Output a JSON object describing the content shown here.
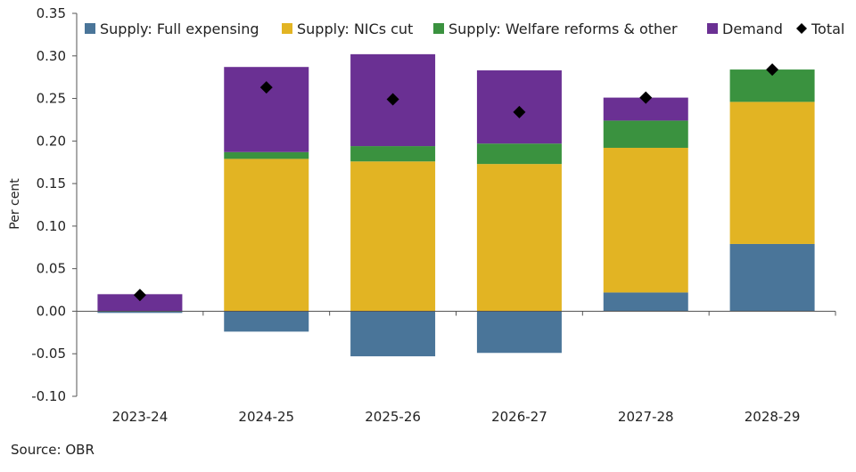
{
  "chart_data": {
    "type": "bar",
    "stacked": true,
    "categories": [
      "2023-24",
      "2024-25",
      "2025-26",
      "2026-27",
      "2027-28",
      "2028-29"
    ],
    "series": [
      {
        "name": "Supply: Full expensing",
        "color": "#4a7599",
        "values": [
          -0.002,
          -0.024,
          -0.053,
          -0.049,
          0.022,
          0.079
        ]
      },
      {
        "name": "Supply: NICs cut",
        "color": "#e2b423",
        "values": [
          0.0,
          0.179,
          0.176,
          0.173,
          0.17,
          0.167
        ]
      },
      {
        "name": "Supply: Welfare reforms & other",
        "color": "#3a923f",
        "values": [
          0.0,
          0.008,
          0.018,
          0.024,
          0.032,
          0.038
        ]
      },
      {
        "name": "Demand",
        "color": "#6a3093",
        "values": [
          0.02,
          0.1,
          0.108,
          0.086,
          0.027,
          0.0
        ]
      }
    ],
    "total": {
      "name": "Total",
      "marker": "diamond",
      "color": "#000000",
      "values": [
        0.019,
        0.263,
        0.249,
        0.234,
        0.251,
        0.284
      ]
    },
    "ylabel": "Per cent",
    "xlabel": "",
    "ylim": [
      -0.1,
      0.35
    ],
    "yticks": [
      "-0.10",
      "-0.05",
      "0.00",
      "0.05",
      "0.10",
      "0.15",
      "0.20",
      "0.25",
      "0.30",
      "0.35"
    ],
    "ytick_values": [
      -0.1,
      -0.05,
      0.0,
      0.05,
      0.1,
      0.15,
      0.2,
      0.25,
      0.3,
      0.35
    ],
    "grid": false,
    "legend": "top"
  },
  "source": "Source: OBR"
}
